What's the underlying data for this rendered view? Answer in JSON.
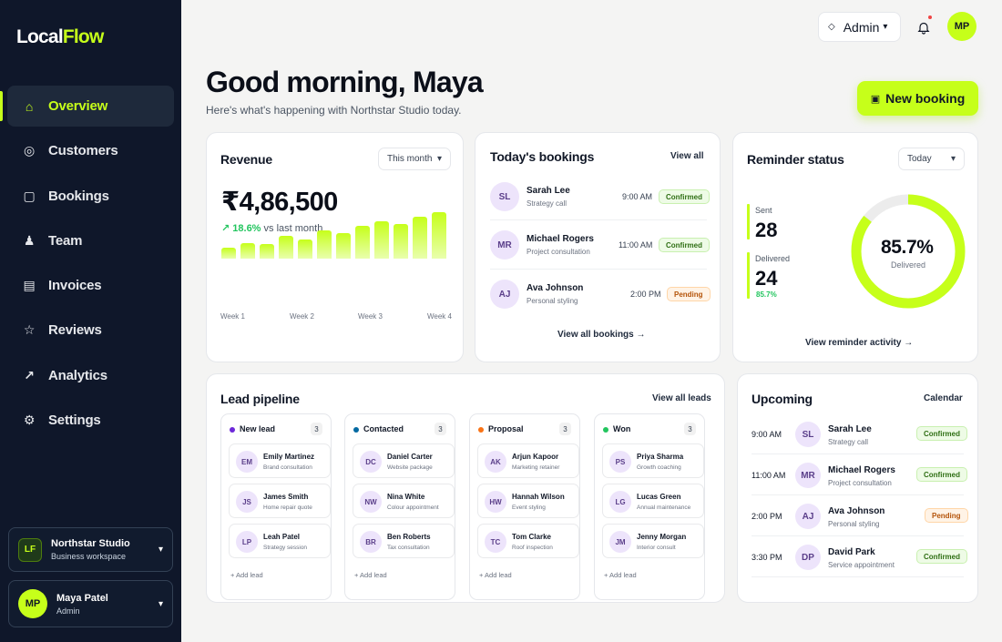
{
  "app": {
    "logo_part1": "Local",
    "logo_part2": "Flow"
  },
  "sidebar": {
    "items": [
      {
        "label": "Overview",
        "icon": "home-icon",
        "glyph": "⌂"
      },
      {
        "label": "Customers",
        "icon": "customers-icon",
        "glyph": "◎"
      },
      {
        "label": "Bookings",
        "icon": "bookings-icon",
        "glyph": "▢"
      },
      {
        "label": "Team",
        "icon": "team-icon",
        "glyph": "♟"
      },
      {
        "label": "Invoices",
        "icon": "invoices-icon",
        "glyph": "▤"
      },
      {
        "label": "Reviews",
        "icon": "star-icon",
        "glyph": "☆"
      },
      {
        "label": "Analytics",
        "icon": "trend-icon",
        "glyph": "↗"
      },
      {
        "label": "Settings",
        "icon": "gear-icon",
        "glyph": "⚙"
      }
    ],
    "workspace": {
      "initials": "LF",
      "name": "Northstar Studio",
      "sub": "Business workspace"
    },
    "user": {
      "initials": "MP",
      "name": "Maya Patel",
      "role": "Admin"
    }
  },
  "topbar": {
    "role_label": "Admin",
    "avatar_initials": "MP"
  },
  "header": {
    "greeting": "Good morning, Maya",
    "subtitle": "Here's what's happening with Northstar Studio today.",
    "new_booking_label": "New booking"
  },
  "revenue": {
    "title": "Revenue",
    "period": "This month",
    "amount": "₹4,86,500",
    "growth": "↗ 18.6%",
    "growth_suffix": "vs last month",
    "weeks": [
      "Week 1",
      "Week 2",
      "Week 3",
      "Week 4"
    ]
  },
  "chart_data": {
    "type": "bar",
    "title": "Revenue",
    "categories": [
      "1",
      "2",
      "3",
      "4",
      "5",
      "6",
      "7",
      "8",
      "9",
      "10",
      "11",
      "12"
    ],
    "values": [
      12,
      16,
      15,
      24,
      20,
      30,
      27,
      35,
      39,
      37,
      44,
      49
    ],
    "x_tick_labels": [
      "Week 1",
      "Week 2",
      "Week 3",
      "Week 4"
    ],
    "grid": false,
    "legend": "none",
    "colors": {
      "bar_top": "#c6ff1a",
      "bar_bottom": "#e9ffad"
    }
  },
  "bookings": {
    "title": "Today's bookings",
    "view_all": "View all",
    "footer_link": "View all bookings →",
    "items": [
      {
        "initials": "SL",
        "name": "Sarah Lee",
        "service": "Strategy call",
        "time": "9:00 AM",
        "status": "Confirmed",
        "kind": "ok"
      },
      {
        "initials": "MR",
        "name": "Michael Rogers",
        "service": "Project consultation",
        "time": "11:00 AM",
        "status": "Confirmed",
        "kind": "ok"
      },
      {
        "initials": "AJ",
        "name": "Ava Johnson",
        "service": "Personal styling",
        "time": "2:00 PM",
        "status": "Pending",
        "kind": "pend"
      }
    ]
  },
  "reminders": {
    "title": "Reminder status",
    "period": "Today",
    "sent_label": "Sent",
    "sent_value": "28",
    "delivered_label": "Delivered",
    "delivered_value": "24",
    "delivered_pct": "85.7%",
    "donut_value": "85.7%",
    "donut_fraction": 0.857,
    "donut_label": "Delivered",
    "footer_link": "View reminder activity →"
  },
  "pipeline": {
    "title": "Lead pipeline",
    "view_all": "View all leads",
    "add_label": "+ Add lead",
    "columns": [
      {
        "name": "New lead",
        "count": "3",
        "color": "#6d28d9",
        "leads": [
          {
            "initials": "EM",
            "name": "Emily Martinez",
            "sub": "Brand consultation"
          },
          {
            "initials": "JS",
            "name": "James Smith",
            "sub": "Home repair quote"
          },
          {
            "initials": "LP",
            "name": "Leah Patel",
            "sub": "Strategy session"
          }
        ]
      },
      {
        "name": "Contacted",
        "count": "3",
        "color": "#0369a1",
        "leads": [
          {
            "initials": "DC",
            "name": "Daniel Carter",
            "sub": "Website package"
          },
          {
            "initials": "NW",
            "name": "Nina White",
            "sub": "Colour appointment"
          },
          {
            "initials": "BR",
            "name": "Ben Roberts",
            "sub": "Tax consultation"
          }
        ]
      },
      {
        "name": "Proposal",
        "count": "3",
        "color": "#f97316",
        "leads": [
          {
            "initials": "AK",
            "name": "Arjun Kapoor",
            "sub": "Marketing retainer"
          },
          {
            "initials": "HW",
            "name": "Hannah Wilson",
            "sub": "Event styling"
          },
          {
            "initials": "TC",
            "name": "Tom Clarke",
            "sub": "Roof inspection"
          }
        ]
      },
      {
        "name": "Won",
        "count": "3",
        "color": "#22c55e",
        "leads": [
          {
            "initials": "PS",
            "name": "Priya Sharma",
            "sub": "Growth coaching"
          },
          {
            "initials": "LG",
            "name": "Lucas Green",
            "sub": "Annual maintenance"
          },
          {
            "initials": "JM",
            "name": "Jenny Morgan",
            "sub": "Interior consult"
          }
        ]
      }
    ]
  },
  "upcoming": {
    "title": "Upcoming",
    "calendar_link": "Calendar",
    "items": [
      {
        "time": "9:00 AM",
        "initials": "SL",
        "name": "Sarah Lee",
        "service": "Strategy call",
        "status": "Confirmed",
        "kind": "ok"
      },
      {
        "time": "11:00 AM",
        "initials": "MR",
        "name": "Michael Rogers",
        "service": "Project consultation",
        "status": "Confirmed",
        "kind": "ok"
      },
      {
        "time": "2:00 PM",
        "initials": "AJ",
        "name": "Ava Johnson",
        "service": "Personal styling",
        "status": "Pending",
        "kind": "pend"
      },
      {
        "time": "3:30 PM",
        "initials": "DP",
        "name": "David Park",
        "service": "Service appointment",
        "status": "Confirmed",
        "kind": "ok"
      }
    ]
  },
  "colors": {
    "accent": "#c6ff1a",
    "sidebar_bg": "#0f172a",
    "success": "#22c55e",
    "pending": "#f97316"
  }
}
